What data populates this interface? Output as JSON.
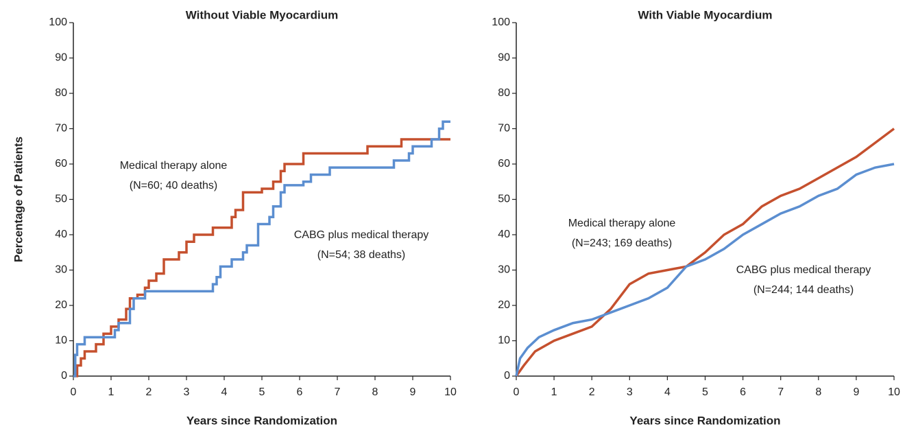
{
  "chart_data": [
    {
      "type": "line",
      "step": true,
      "title": "Without Viable Myocardium",
      "ylabel": "Percentage of Patients",
      "xlabel": "Years since Randomization",
      "xlim": [
        0,
        10
      ],
      "xticks": [
        0,
        1,
        2,
        3,
        4,
        5,
        6,
        7,
        8,
        9,
        10
      ],
      "ylim": [
        0,
        100
      ],
      "yticks": [
        0,
        10,
        20,
        30,
        40,
        50,
        60,
        70,
        80,
        90,
        100
      ],
      "series": [
        {
          "name": "Medical therapy alone",
          "annotation": "(N=60; 40 deaths)",
          "color": "#c5502e",
          "x": [
            0,
            0.1,
            0.2,
            0.3,
            0.6,
            0.8,
            1.0,
            1.2,
            1.4,
            1.5,
            1.7,
            1.9,
            2.0,
            2.2,
            2.4,
            2.8,
            3.0,
            3.2,
            3.7,
            4.2,
            4.3,
            4.5,
            5.0,
            5.3,
            5.5,
            5.6,
            6.1,
            7.8,
            8.7,
            10
          ],
          "values": [
            0,
            3,
            5,
            7,
            9,
            12,
            14,
            16,
            19,
            22,
            23,
            25,
            27,
            29,
            33,
            35,
            38,
            40,
            42,
            45,
            47,
            52,
            53,
            55,
            58,
            60,
            63,
            65,
            67,
            67
          ]
        },
        {
          "name": "CABG plus medical therapy",
          "annotation": "(N=54; 38 deaths)",
          "color": "#5b8ed0",
          "x": [
            0,
            0.05,
            0.1,
            0.3,
            1.1,
            1.2,
            1.5,
            1.6,
            1.9,
            3.6,
            3.7,
            3.8,
            3.9,
            4.2,
            4.5,
            4.6,
            4.9,
            5.2,
            5.3,
            5.5,
            5.6,
            6.1,
            6.3,
            6.8,
            8.5,
            8.9,
            9.0,
            9.5,
            9.7,
            9.8,
            10
          ],
          "values": [
            0,
            6,
            9,
            11,
            13,
            15,
            19,
            22,
            24,
            24,
            26,
            28,
            31,
            33,
            35,
            37,
            43,
            45,
            48,
            52,
            54,
            55,
            57,
            59,
            61,
            63,
            65,
            67,
            70,
            72,
            72
          ]
        }
      ]
    },
    {
      "type": "line",
      "step": false,
      "title": "With Viable Myocardium",
      "xlabel": "Years since Randomization",
      "xlim": [
        0,
        10
      ],
      "xticks": [
        0,
        1,
        2,
        3,
        4,
        5,
        6,
        7,
        8,
        9,
        10
      ],
      "ylim": [
        0,
        100
      ],
      "yticks": [
        0,
        10,
        20,
        30,
        40,
        50,
        60,
        70,
        80,
        90,
        100
      ],
      "series": [
        {
          "name": "Medical therapy alone",
          "annotation": "(N=243; 169 deaths)",
          "color": "#c5502e",
          "x": [
            0,
            0.2,
            0.5,
            1,
            1.5,
            2,
            2.5,
            3,
            3.5,
            4,
            4.5,
            5,
            5.5,
            6,
            6.5,
            7,
            7.5,
            8,
            8.5,
            9,
            9.5,
            10
          ],
          "values": [
            0,
            3,
            7,
            10,
            12,
            14,
            19,
            26,
            29,
            30,
            31,
            35,
            40,
            43,
            48,
            51,
            53,
            56,
            59,
            62,
            66,
            70
          ]
        },
        {
          "name": "CABG plus medical therapy",
          "annotation": "(N=244; 144 deaths)",
          "color": "#5b8ed0",
          "x": [
            0,
            0.1,
            0.3,
            0.6,
            1,
            1.5,
            2,
            2.5,
            3,
            3.5,
            4,
            4.5,
            5,
            5.5,
            6,
            6.5,
            7,
            7.5,
            8,
            8.5,
            9,
            9.5,
            10
          ],
          "values": [
            0,
            5,
            8,
            11,
            13,
            15,
            16,
            18,
            20,
            22,
            25,
            31,
            33,
            36,
            40,
            43,
            46,
            48,
            51,
            53,
            57,
            59,
            60
          ]
        }
      ]
    }
  ]
}
